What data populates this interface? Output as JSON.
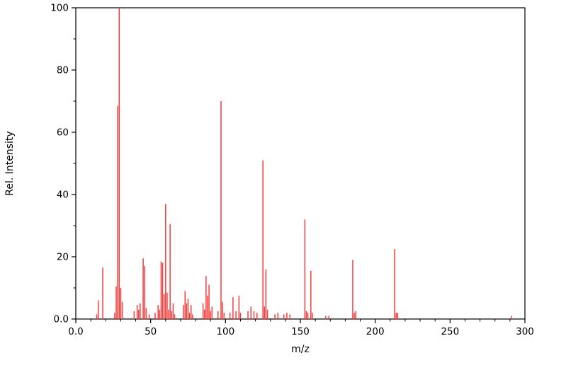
{
  "chart": {
    "title": "",
    "xlabel": "m/z",
    "ylabel": "Rel. Intensity"
  },
  "chart_data": {
    "type": "bar",
    "style": "mass-spectrum-stick-plot",
    "title": "",
    "xlabel": "m/z",
    "ylabel": "Rel. Intensity",
    "xlim": [
      0,
      300
    ],
    "ylim": [
      0,
      100
    ],
    "grid": false,
    "legend": false,
    "background_color": "#ffffff",
    "axis_color": "#000000",
    "peak_color": "#fa3a3a",
    "xticks": {
      "values": [
        0,
        50,
        100,
        150,
        200,
        250,
        300
      ],
      "labels": [
        "0.0",
        "50",
        "100",
        "150",
        "200",
        "250",
        "300"
      ]
    },
    "yticks": {
      "values": [
        0,
        20,
        40,
        60,
        80,
        100
      ],
      "labels": [
        "0.0",
        "20",
        "40",
        "60",
        "80",
        "100"
      ]
    },
    "minor_tick_step": {
      "x": 10,
      "y": 10
    },
    "peaks": [
      [
        14,
        1.5
      ],
      [
        15,
        6
      ],
      [
        18,
        16.5
      ],
      [
        26,
        2
      ],
      [
        27,
        10.5
      ],
      [
        28,
        68.5
      ],
      [
        29,
        100
      ],
      [
        30,
        10
      ],
      [
        31,
        5.5
      ],
      [
        39,
        2.5
      ],
      [
        41,
        4.5
      ],
      [
        42,
        3
      ],
      [
        43,
        5
      ],
      [
        45,
        19.5
      ],
      [
        46,
        17
      ],
      [
        47,
        3.5
      ],
      [
        49,
        1.5
      ],
      [
        53,
        2
      ],
      [
        55,
        4.5
      ],
      [
        56,
        3
      ],
      [
        57,
        18.5
      ],
      [
        58,
        18
      ],
      [
        59,
        8
      ],
      [
        60,
        37
      ],
      [
        61,
        8.5
      ],
      [
        62,
        3
      ],
      [
        63,
        30.5
      ],
      [
        64,
        2.5
      ],
      [
        65,
        5
      ],
      [
        66,
        1.5
      ],
      [
        72,
        4.5
      ],
      [
        73,
        9
      ],
      [
        74,
        5
      ],
      [
        75,
        6.5
      ],
      [
        76,
        2
      ],
      [
        77,
        4.5
      ],
      [
        78,
        1.5
      ],
      [
        85,
        5
      ],
      [
        86,
        3
      ],
      [
        87,
        13.8
      ],
      [
        88,
        7.5
      ],
      [
        89,
        11
      ],
      [
        90,
        2.5
      ],
      [
        91,
        4
      ],
      [
        95,
        2.5
      ],
      [
        97,
        70
      ],
      [
        98,
        5.5
      ],
      [
        99,
        2
      ],
      [
        103,
        2
      ],
      [
        105,
        7
      ],
      [
        107,
        2.5
      ],
      [
        109,
        7.5
      ],
      [
        110,
        2
      ],
      [
        115,
        2.5
      ],
      [
        117,
        4
      ],
      [
        119,
        2.5
      ],
      [
        121,
        2
      ],
      [
        125,
        51
      ],
      [
        126,
        4
      ],
      [
        127,
        16
      ],
      [
        128,
        3
      ],
      [
        133,
        1.5
      ],
      [
        135,
        2
      ],
      [
        139,
        1.5
      ],
      [
        141,
        2
      ],
      [
        143,
        1.5
      ],
      [
        153,
        32
      ],
      [
        154,
        2.5
      ],
      [
        155,
        2
      ],
      [
        157,
        15.5
      ],
      [
        158,
        2
      ],
      [
        167,
        1
      ],
      [
        169,
        1
      ],
      [
        185,
        19
      ],
      [
        186,
        2
      ],
      [
        187,
        2.5
      ],
      [
        213,
        22.5
      ],
      [
        214,
        2
      ],
      [
        215,
        2
      ],
      [
        291,
        1
      ]
    ]
  }
}
